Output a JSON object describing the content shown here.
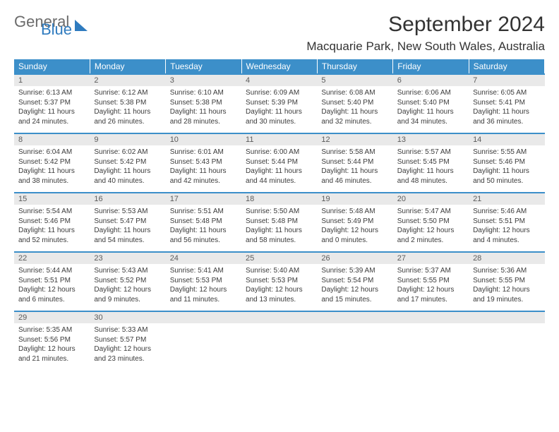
{
  "brand": {
    "word1": "General",
    "word2": "Blue"
  },
  "header": {
    "title": "September 2024",
    "location": "Macquarie Park, New South Wales, Australia"
  },
  "colors": {
    "header_bg": "#3c8fc9",
    "header_text": "#ffffff",
    "daynum_bg": "#e9e9e9",
    "row_border": "#3c8fc9",
    "body_text": "#3b3b3b",
    "logo_gray": "#6b6b6b",
    "logo_blue": "#2f7bbf"
  },
  "weekdays": [
    "Sunday",
    "Monday",
    "Tuesday",
    "Wednesday",
    "Thursday",
    "Friday",
    "Saturday"
  ],
  "days": [
    {
      "n": "1",
      "sr": "6:13 AM",
      "ss": "5:37 PM",
      "dl": "11 hours and 24 minutes."
    },
    {
      "n": "2",
      "sr": "6:12 AM",
      "ss": "5:38 PM",
      "dl": "11 hours and 26 minutes."
    },
    {
      "n": "3",
      "sr": "6:10 AM",
      "ss": "5:38 PM",
      "dl": "11 hours and 28 minutes."
    },
    {
      "n": "4",
      "sr": "6:09 AM",
      "ss": "5:39 PM",
      "dl": "11 hours and 30 minutes."
    },
    {
      "n": "5",
      "sr": "6:08 AM",
      "ss": "5:40 PM",
      "dl": "11 hours and 32 minutes."
    },
    {
      "n": "6",
      "sr": "6:06 AM",
      "ss": "5:40 PM",
      "dl": "11 hours and 34 minutes."
    },
    {
      "n": "7",
      "sr": "6:05 AM",
      "ss": "5:41 PM",
      "dl": "11 hours and 36 minutes."
    },
    {
      "n": "8",
      "sr": "6:04 AM",
      "ss": "5:42 PM",
      "dl": "11 hours and 38 minutes."
    },
    {
      "n": "9",
      "sr": "6:02 AM",
      "ss": "5:42 PM",
      "dl": "11 hours and 40 minutes."
    },
    {
      "n": "10",
      "sr": "6:01 AM",
      "ss": "5:43 PM",
      "dl": "11 hours and 42 minutes."
    },
    {
      "n": "11",
      "sr": "6:00 AM",
      "ss": "5:44 PM",
      "dl": "11 hours and 44 minutes."
    },
    {
      "n": "12",
      "sr": "5:58 AM",
      "ss": "5:44 PM",
      "dl": "11 hours and 46 minutes."
    },
    {
      "n": "13",
      "sr": "5:57 AM",
      "ss": "5:45 PM",
      "dl": "11 hours and 48 minutes."
    },
    {
      "n": "14",
      "sr": "5:55 AM",
      "ss": "5:46 PM",
      "dl": "11 hours and 50 minutes."
    },
    {
      "n": "15",
      "sr": "5:54 AM",
      "ss": "5:46 PM",
      "dl": "11 hours and 52 minutes."
    },
    {
      "n": "16",
      "sr": "5:53 AM",
      "ss": "5:47 PM",
      "dl": "11 hours and 54 minutes."
    },
    {
      "n": "17",
      "sr": "5:51 AM",
      "ss": "5:48 PM",
      "dl": "11 hours and 56 minutes."
    },
    {
      "n": "18",
      "sr": "5:50 AM",
      "ss": "5:48 PM",
      "dl": "11 hours and 58 minutes."
    },
    {
      "n": "19",
      "sr": "5:48 AM",
      "ss": "5:49 PM",
      "dl": "12 hours and 0 minutes."
    },
    {
      "n": "20",
      "sr": "5:47 AM",
      "ss": "5:50 PM",
      "dl": "12 hours and 2 minutes."
    },
    {
      "n": "21",
      "sr": "5:46 AM",
      "ss": "5:51 PM",
      "dl": "12 hours and 4 minutes."
    },
    {
      "n": "22",
      "sr": "5:44 AM",
      "ss": "5:51 PM",
      "dl": "12 hours and 6 minutes."
    },
    {
      "n": "23",
      "sr": "5:43 AM",
      "ss": "5:52 PM",
      "dl": "12 hours and 9 minutes."
    },
    {
      "n": "24",
      "sr": "5:41 AM",
      "ss": "5:53 PM",
      "dl": "12 hours and 11 minutes."
    },
    {
      "n": "25",
      "sr": "5:40 AM",
      "ss": "5:53 PM",
      "dl": "12 hours and 13 minutes."
    },
    {
      "n": "26",
      "sr": "5:39 AM",
      "ss": "5:54 PM",
      "dl": "12 hours and 15 minutes."
    },
    {
      "n": "27",
      "sr": "5:37 AM",
      "ss": "5:55 PM",
      "dl": "12 hours and 17 minutes."
    },
    {
      "n": "28",
      "sr": "5:36 AM",
      "ss": "5:55 PM",
      "dl": "12 hours and 19 minutes."
    },
    {
      "n": "29",
      "sr": "5:35 AM",
      "ss": "5:56 PM",
      "dl": "12 hours and 21 minutes."
    },
    {
      "n": "30",
      "sr": "5:33 AM",
      "ss": "5:57 PM",
      "dl": "12 hours and 23 minutes."
    }
  ],
  "labels": {
    "sunrise": "Sunrise:",
    "sunset": "Sunset:",
    "daylight": "Daylight:"
  }
}
